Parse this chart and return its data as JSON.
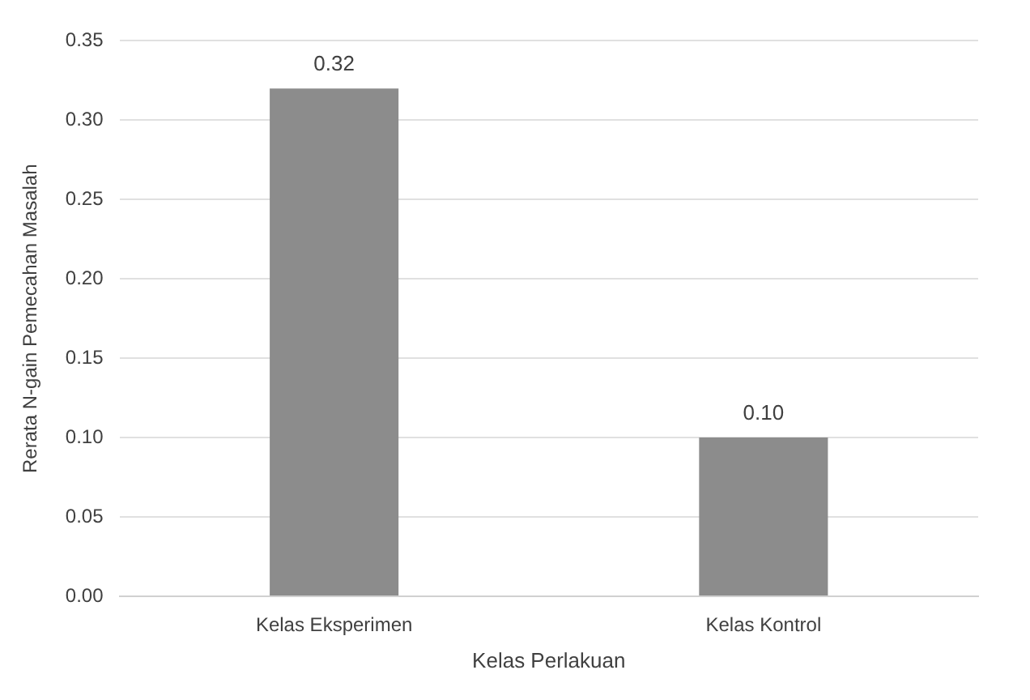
{
  "chart_data": {
    "type": "bar",
    "xlabel": "Kelas Perlakuan",
    "ylabel": "Rerata N-gain Pemecahan Masalah",
    "categories": [
      "Kelas Eksperimen",
      "Kelas Kontrol"
    ],
    "values": [
      0.32,
      0.1
    ],
    "color": "#8c8c8c",
    "value_labels": [
      "0.32",
      "0.10"
    ],
    "ylim": [
      0,
      0.35
    ],
    "yticks": [
      {
        "value": 0,
        "label": "0.00"
      },
      {
        "value": 0.05,
        "label": "0.05"
      },
      {
        "value": 0.1,
        "label": "0.10"
      },
      {
        "value": 0.15,
        "label": "0.15"
      },
      {
        "value": 0.2,
        "label": "0.20"
      },
      {
        "value": 0.25,
        "label": "0.25"
      },
      {
        "value": 0.3,
        "label": "0.30"
      },
      {
        "value": 0.35,
        "label": "0.35"
      }
    ],
    "grid": "y",
    "legend": false
  }
}
